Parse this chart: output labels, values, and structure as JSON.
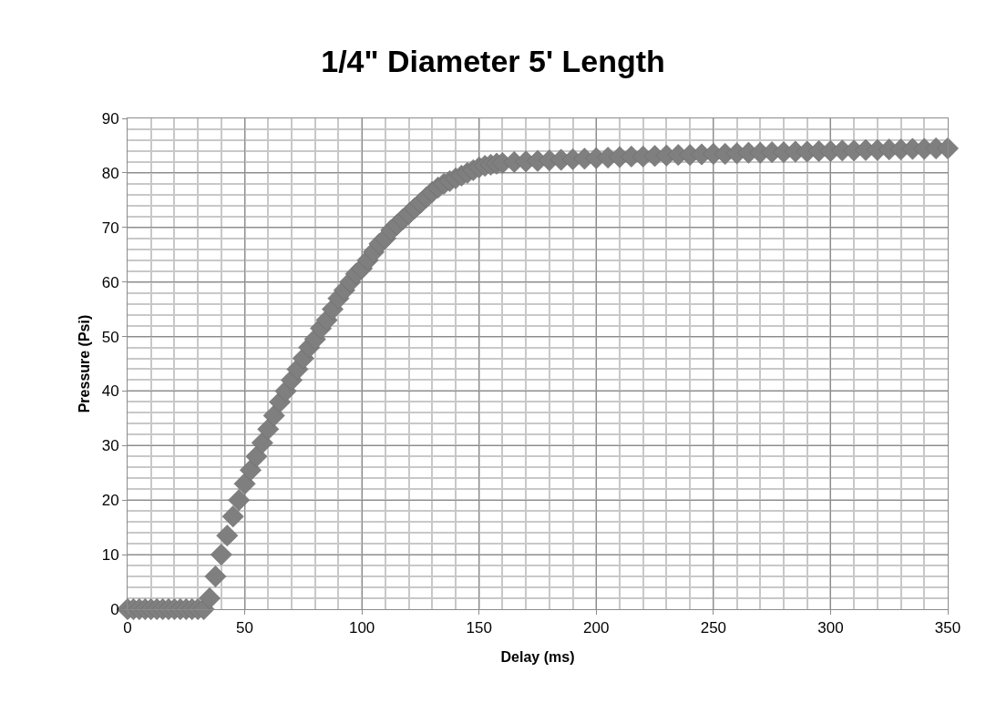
{
  "chart_data": {
    "type": "scatter",
    "title": "1/4\" Diameter 5' Length",
    "xlabel": "Delay (ms)",
    "ylabel": "Pressure (Psi)",
    "x": [
      0,
      2.5,
      5,
      7.5,
      10,
      12.5,
      15,
      17.5,
      20,
      22.5,
      25,
      27.5,
      30,
      32.5,
      35,
      37.5,
      40,
      42.5,
      45,
      47.5,
      50,
      52.5,
      55,
      57.5,
      60,
      62.5,
      65,
      67.5,
      70,
      72.5,
      75,
      77.5,
      80,
      82.5,
      85,
      87.5,
      90,
      92.5,
      95,
      97.5,
      100,
      102.5,
      105,
      107.5,
      110,
      112.5,
      115,
      117.5,
      120,
      122.5,
      125,
      127.5,
      130,
      132.5,
      135,
      137.5,
      140,
      142.5,
      145,
      147.5,
      150,
      152.5,
      155,
      157.5,
      160,
      165,
      170,
      175,
      180,
      185,
      190,
      195,
      200,
      205,
      210,
      215,
      220,
      225,
      230,
      235,
      240,
      245,
      250,
      255,
      260,
      265,
      270,
      275,
      280,
      285,
      290,
      295,
      300,
      305,
      310,
      315,
      320,
      325,
      330,
      335,
      340,
      345,
      350
    ],
    "values": [
      0,
      0,
      0,
      0,
      0,
      0,
      0,
      0,
      0,
      0,
      0,
      0,
      0,
      0,
      2,
      6,
      10,
      13.5,
      17,
      20,
      23,
      25.5,
      28,
      30.5,
      33,
      35.5,
      38,
      40,
      42,
      44,
      46,
      48,
      49.5,
      51.5,
      53,
      55,
      57,
      58.5,
      60,
      61.5,
      62.5,
      64,
      65.5,
      67,
      68,
      69.5,
      70.5,
      71.5,
      72.5,
      73.5,
      74.5,
      75.5,
      76.5,
      77.3,
      78,
      78.5,
      79,
      79.5,
      80,
      80.5,
      81,
      81.3,
      81.5,
      81.7,
      81.8,
      82,
      82.1,
      82.2,
      82.3,
      82.4,
      82.5,
      82.6,
      82.7,
      82.8,
      82.9,
      83,
      83,
      83.1,
      83.2,
      83.3,
      83.3,
      83.4,
      83.5,
      83.5,
      83.6,
      83.7,
      83.7,
      83.8,
      83.8,
      83.9,
      83.9,
      84,
      84,
      84.1,
      84.1,
      84.2,
      84.2,
      84.3,
      84.3,
      84.4,
      84.4,
      84.5,
      84.5
    ],
    "color": "#7f7f7f",
    "marker": "diamond",
    "grid": true,
    "xlim": [
      0,
      350
    ],
    "xticks": [
      0,
      50,
      100,
      150,
      200,
      250,
      300,
      350
    ],
    "ylim": [
      0,
      90
    ],
    "yticks": [
      0,
      10,
      20,
      30,
      40,
      50,
      60,
      70,
      80,
      90
    ]
  }
}
